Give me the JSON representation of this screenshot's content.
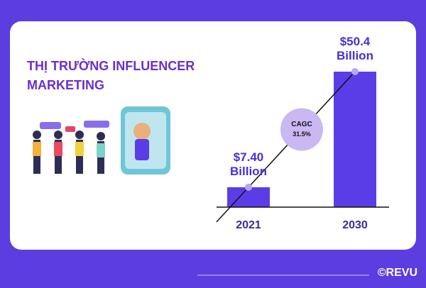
{
  "chart_data": {
    "type": "bar",
    "title": "THỊ TRƯỜNG INFLUENCER MARKETING",
    "categories": [
      "2021",
      "2030"
    ],
    "values": [
      7.4,
      50.4
    ],
    "value_labels": [
      "$7.40 Billion",
      "$50.4 Billion"
    ],
    "color": "#5b3de8",
    "annotation": {
      "title": "CAGC",
      "text": "31.5%"
    }
  },
  "brand": "©REVU"
}
